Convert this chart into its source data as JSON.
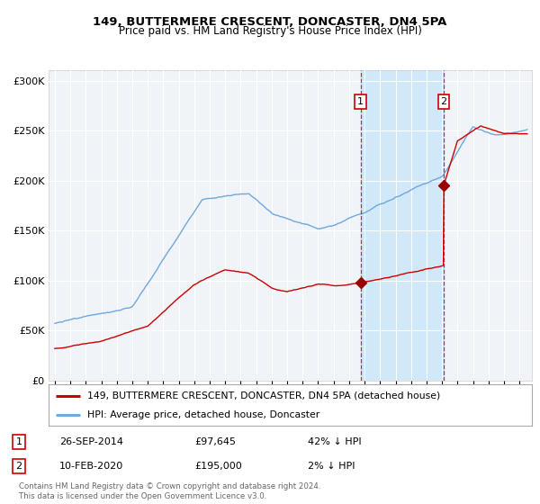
{
  "title": "149, BUTTERMERE CRESCENT, DONCASTER, DN4 5PA",
  "subtitle": "Price paid vs. HM Land Registry's House Price Index (HPI)",
  "legend_line1": "149, BUTTERMERE CRESCENT, DONCASTER, DN4 5PA (detached house)",
  "legend_line2": "HPI: Average price, detached house, Doncaster",
  "annotation1_date": "26-SEP-2014",
  "annotation1_price": "£97,645",
  "annotation1_hpi": "42% ↓ HPI",
  "annotation2_date": "10-FEB-2020",
  "annotation2_price": "£195,000",
  "annotation2_hpi": "2% ↓ HPI",
  "footer": "Contains HM Land Registry data © Crown copyright and database right 2024.\nThis data is licensed under the Open Government Licence v3.0.",
  "hpi_color": "#6fa8dc",
  "price_color": "#cc0000",
  "marker_color": "#990000",
  "bg_color": "#f5f5f5",
  "plot_bg": "#f0f0f0",
  "grid_color": "#d0d0d0",
  "shade_color": "#ddeeff",
  "ylim": [
    0,
    310000
  ],
  "yticks": [
    0,
    50000,
    100000,
    150000,
    200000,
    250000,
    300000
  ],
  "point1_x": 2014.74,
  "point1_y": 97645,
  "point2_x": 2020.11,
  "point2_y": 195000,
  "xmin": 1994.6,
  "xmax": 2025.8
}
